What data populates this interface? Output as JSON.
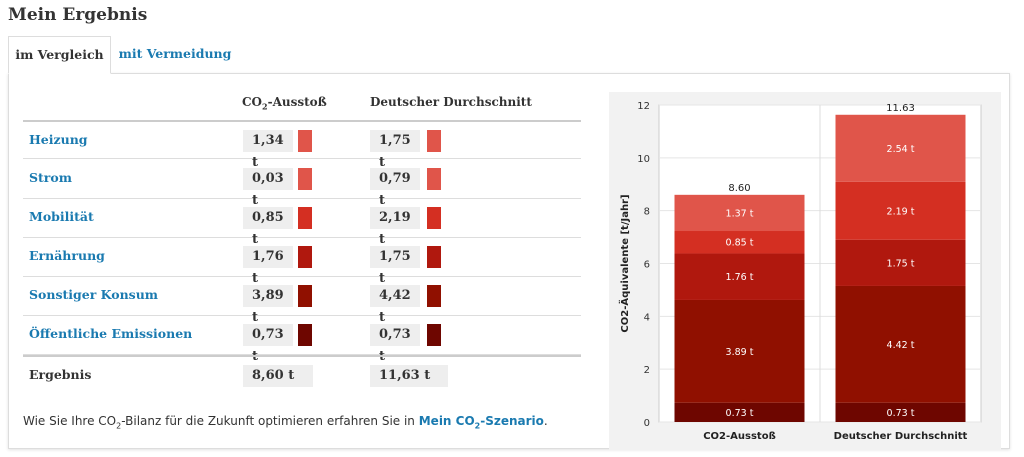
{
  "page": {
    "title": "Mein Ergebnis"
  },
  "tabs": [
    {
      "label": "im Vergleich",
      "active": true
    },
    {
      "label": "mit Vermeidung",
      "active": false
    }
  ],
  "table": {
    "col1": "CO",
    "col1_sub": "2",
    "col1_suffix": "-Ausstoß",
    "col2": "Deutscher Durchschnitt",
    "rows": [
      {
        "label": "Heizung",
        "you": "1,34 t",
        "avg": "1,75 t",
        "color": "#e0554a"
      },
      {
        "label": "Strom",
        "you": "0,03 t",
        "avg": "0,79 t",
        "color": "#e0554a"
      },
      {
        "label": "Mobilität",
        "you": "0,85 t",
        "avg": "2,19 t",
        "color": "#d42f22"
      },
      {
        "label": "Ernährung",
        "you": "1,76 t",
        "avg": "1,75 t",
        "color": "#b0180e"
      },
      {
        "label": "Sonstiger Konsum",
        "you": "3,89 t",
        "avg": "4,42 t",
        "color": "#901000"
      },
      {
        "label": "Öffentliche Emissionen",
        "you": "0,73 t",
        "avg": "0,73 t",
        "color": "#6e0600"
      }
    ],
    "result": {
      "label": "Ergebnis",
      "you": "8,60 t",
      "avg": "11,63 t"
    }
  },
  "note": {
    "text_before": "Wie Sie Ihre CO",
    "sub": "2",
    "text_after": "-Bilanz für die Zukunft optimieren erfahren Sie in ",
    "link_before": "Mein CO",
    "link_sub": "2",
    "link_after": "-Szenario",
    "end": "."
  },
  "chart_data": {
    "type": "bar",
    "stacked": true,
    "ylabel": "CO2-Äquivalente [t/Jahr]",
    "ylim": [
      0,
      12
    ],
    "yticks": [
      0,
      2,
      4,
      6,
      8,
      10,
      12
    ],
    "categories": [
      "CO2-Ausstoß",
      "Deutscher Durchschnitt"
    ],
    "totals": [
      8.6,
      11.63
    ],
    "total_labels": [
      "8.60",
      "11.63"
    ],
    "grid": true,
    "series": [
      {
        "values": [
          0.73,
          0.73
        ],
        "labels": [
          "0.73 t",
          "0.73 t"
        ],
        "color": "#6e0600"
      },
      {
        "values": [
          3.89,
          4.42
        ],
        "labels": [
          "3.89 t",
          "4.42 t"
        ],
        "color": "#901000"
      },
      {
        "values": [
          1.76,
          1.75
        ],
        "labels": [
          "1.76 t",
          "1.75 t"
        ],
        "color": "#b0180e"
      },
      {
        "values": [
          0.85,
          2.19
        ],
        "labels": [
          "0.85 t",
          "2.19 t"
        ],
        "color": "#d42f22"
      },
      {
        "values": [
          1.37,
          2.54
        ],
        "labels": [
          "1.37 t",
          "2.54 t"
        ],
        "color": "#e0554a"
      }
    ]
  }
}
